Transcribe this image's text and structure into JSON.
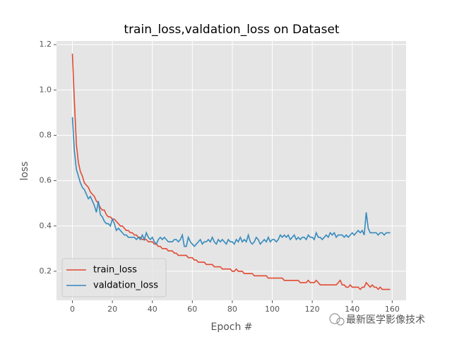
{
  "chart_data": {
    "type": "line",
    "title": "train_loss,valdation_loss on Dataset",
    "xlabel": "Epoch #",
    "ylabel": "loss",
    "x": [
      0,
      1,
      2,
      3,
      4,
      5,
      6,
      7,
      8,
      9,
      10,
      11,
      12,
      13,
      14,
      15,
      16,
      17,
      18,
      19,
      20,
      21,
      22,
      23,
      24,
      25,
      26,
      27,
      28,
      29,
      30,
      31,
      32,
      33,
      34,
      35,
      36,
      37,
      38,
      39,
      40,
      41,
      42,
      43,
      44,
      45,
      46,
      47,
      48,
      49,
      50,
      51,
      52,
      53,
      54,
      55,
      56,
      57,
      58,
      59,
      60,
      61,
      62,
      63,
      64,
      65,
      66,
      67,
      68,
      69,
      70,
      71,
      72,
      73,
      74,
      75,
      76,
      77,
      78,
      79,
      80,
      81,
      82,
      83,
      84,
      85,
      86,
      87,
      88,
      89,
      90,
      91,
      92,
      93,
      94,
      95,
      96,
      97,
      98,
      99,
      100,
      101,
      102,
      103,
      104,
      105,
      106,
      107,
      108,
      109,
      110,
      111,
      112,
      113,
      114,
      115,
      116,
      117,
      118,
      119,
      120,
      121,
      122,
      123,
      124,
      125,
      126,
      127,
      128,
      129,
      130,
      131,
      132,
      133,
      134,
      135,
      136,
      137,
      138,
      139,
      140,
      141,
      142,
      143,
      144,
      145,
      146,
      147,
      148,
      149,
      150,
      151,
      152,
      153,
      154,
      155,
      156,
      157,
      158,
      159
    ],
    "series": [
      {
        "name": "train_loss",
        "color": "#E24A33",
        "values": [
          1.16,
          0.95,
          0.76,
          0.68,
          0.64,
          0.62,
          0.59,
          0.58,
          0.57,
          0.55,
          0.54,
          0.53,
          0.51,
          0.5,
          0.48,
          0.47,
          0.47,
          0.45,
          0.44,
          0.44,
          0.43,
          0.43,
          0.42,
          0.41,
          0.4,
          0.4,
          0.39,
          0.38,
          0.38,
          0.37,
          0.37,
          0.36,
          0.36,
          0.35,
          0.35,
          0.34,
          0.34,
          0.34,
          0.33,
          0.33,
          0.33,
          0.32,
          0.32,
          0.31,
          0.31,
          0.3,
          0.3,
          0.3,
          0.29,
          0.29,
          0.29,
          0.28,
          0.28,
          0.27,
          0.27,
          0.27,
          0.27,
          0.27,
          0.26,
          0.26,
          0.26,
          0.25,
          0.25,
          0.24,
          0.24,
          0.24,
          0.24,
          0.23,
          0.23,
          0.23,
          0.23,
          0.22,
          0.22,
          0.22,
          0.22,
          0.21,
          0.21,
          0.21,
          0.21,
          0.21,
          0.2,
          0.2,
          0.21,
          0.2,
          0.2,
          0.2,
          0.19,
          0.19,
          0.19,
          0.19,
          0.19,
          0.18,
          0.18,
          0.18,
          0.18,
          0.18,
          0.18,
          0.18,
          0.17,
          0.17,
          0.17,
          0.17,
          0.17,
          0.17,
          0.17,
          0.17,
          0.16,
          0.16,
          0.16,
          0.16,
          0.16,
          0.16,
          0.16,
          0.16,
          0.15,
          0.15,
          0.15,
          0.15,
          0.16,
          0.15,
          0.15,
          0.15,
          0.16,
          0.15,
          0.14,
          0.14,
          0.14,
          0.14,
          0.14,
          0.14,
          0.14,
          0.14,
          0.14,
          0.15,
          0.16,
          0.14,
          0.14,
          0.13,
          0.13,
          0.14,
          0.13,
          0.13,
          0.13,
          0.13,
          0.12,
          0.13,
          0.13,
          0.15,
          0.14,
          0.13,
          0.14,
          0.13,
          0.13,
          0.12,
          0.13,
          0.12,
          0.12,
          0.12,
          0.12,
          0.12
        ]
      },
      {
        "name": "valdation_loss",
        "color": "#348ABD",
        "values": [
          0.88,
          0.73,
          0.65,
          0.62,
          0.59,
          0.57,
          0.56,
          0.54,
          0.52,
          0.53,
          0.51,
          0.49,
          0.46,
          0.51,
          0.45,
          0.44,
          0.42,
          0.41,
          0.41,
          0.4,
          0.43,
          0.41,
          0.38,
          0.39,
          0.38,
          0.37,
          0.36,
          0.36,
          0.35,
          0.35,
          0.35,
          0.35,
          0.34,
          0.35,
          0.34,
          0.36,
          0.34,
          0.37,
          0.35,
          0.34,
          0.35,
          0.33,
          0.32,
          0.34,
          0.35,
          0.34,
          0.35,
          0.34,
          0.33,
          0.33,
          0.33,
          0.34,
          0.34,
          0.33,
          0.34,
          0.36,
          0.31,
          0.31,
          0.35,
          0.33,
          0.32,
          0.31,
          0.32,
          0.33,
          0.34,
          0.32,
          0.33,
          0.33,
          0.34,
          0.33,
          0.35,
          0.33,
          0.32,
          0.34,
          0.33,
          0.34,
          0.33,
          0.32,
          0.34,
          0.33,
          0.33,
          0.32,
          0.34,
          0.33,
          0.35,
          0.33,
          0.34,
          0.33,
          0.36,
          0.33,
          0.32,
          0.33,
          0.35,
          0.34,
          0.32,
          0.33,
          0.34,
          0.33,
          0.35,
          0.33,
          0.34,
          0.34,
          0.33,
          0.34,
          0.36,
          0.35,
          0.36,
          0.35,
          0.36,
          0.34,
          0.35,
          0.36,
          0.34,
          0.35,
          0.34,
          0.35,
          0.35,
          0.34,
          0.36,
          0.35,
          0.35,
          0.34,
          0.37,
          0.35,
          0.35,
          0.34,
          0.35,
          0.36,
          0.35,
          0.37,
          0.36,
          0.37,
          0.35,
          0.36,
          0.36,
          0.36,
          0.35,
          0.36,
          0.35,
          0.36,
          0.37,
          0.36,
          0.37,
          0.38,
          0.37,
          0.38,
          0.36,
          0.46,
          0.39,
          0.37,
          0.37,
          0.37,
          0.37,
          0.36,
          0.37,
          0.37,
          0.36,
          0.37,
          0.37,
          0.37
        ]
      }
    ],
    "xlim": [
      -7.95,
      166.95
    ],
    "ylim": [
      0.072,
      1.216
    ],
    "xticks": [
      0,
      20,
      40,
      60,
      80,
      100,
      120,
      140,
      160
    ],
    "yticks": [
      0.2,
      0.4,
      0.6,
      0.8,
      {
        "value": 1,
        "label": "1.0"
      },
      1.2
    ],
    "grid": true,
    "legend": "lower left"
  },
  "watermark": "最新医学影像技术"
}
